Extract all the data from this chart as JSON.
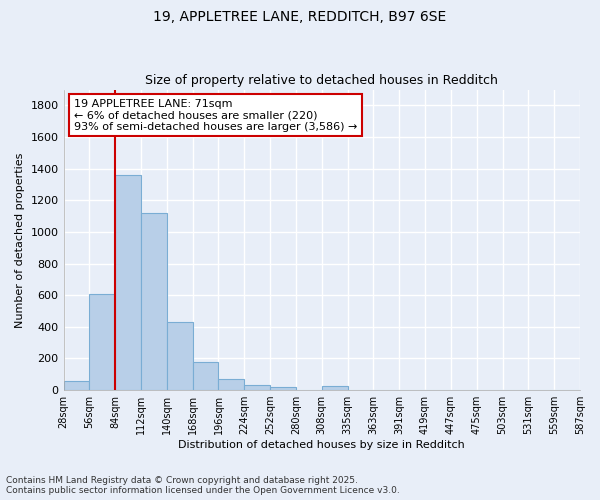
{
  "title_line1": "19, APPLETREE LANE, REDDITCH, B97 6SE",
  "title_line2": "Size of property relative to detached houses in Redditch",
  "xlabel": "Distribution of detached houses by size in Redditch",
  "ylabel": "Number of detached properties",
  "bar_values": [
    55,
    610,
    1360,
    1120,
    430,
    175,
    70,
    35,
    20,
    0,
    25,
    0,
    0,
    0,
    0,
    0,
    0,
    0,
    0,
    0
  ],
  "bin_labels": [
    "28sqm",
    "56sqm",
    "84sqm",
    "112sqm",
    "140sqm",
    "168sqm",
    "196sqm",
    "224sqm",
    "252sqm",
    "280sqm",
    "308sqm",
    "335sqm",
    "363sqm",
    "391sqm",
    "419sqm",
    "447sqm",
    "475sqm",
    "503sqm",
    "531sqm",
    "559sqm",
    "587sqm"
  ],
  "bar_color": "#b8cfe8",
  "bar_edge_color": "#7aadd4",
  "background_color": "#e8eef8",
  "grid_color": "#ffffff",
  "vline_x": 2.0,
  "vline_color": "#cc0000",
  "annotation_text": "19 APPLETREE LANE: 71sqm\n← 6% of detached houses are smaller (220)\n93% of semi-detached houses are larger (3,586) →",
  "annotation_box_color": "#ffffff",
  "annotation_box_edge": "#cc0000",
  "ylim": [
    0,
    1900
  ],
  "yticks": [
    0,
    200,
    400,
    600,
    800,
    1000,
    1200,
    1400,
    1600,
    1800
  ],
  "footnote": "Contains HM Land Registry data © Crown copyright and database right 2025.\nContains public sector information licensed under the Open Government Licence v3.0."
}
